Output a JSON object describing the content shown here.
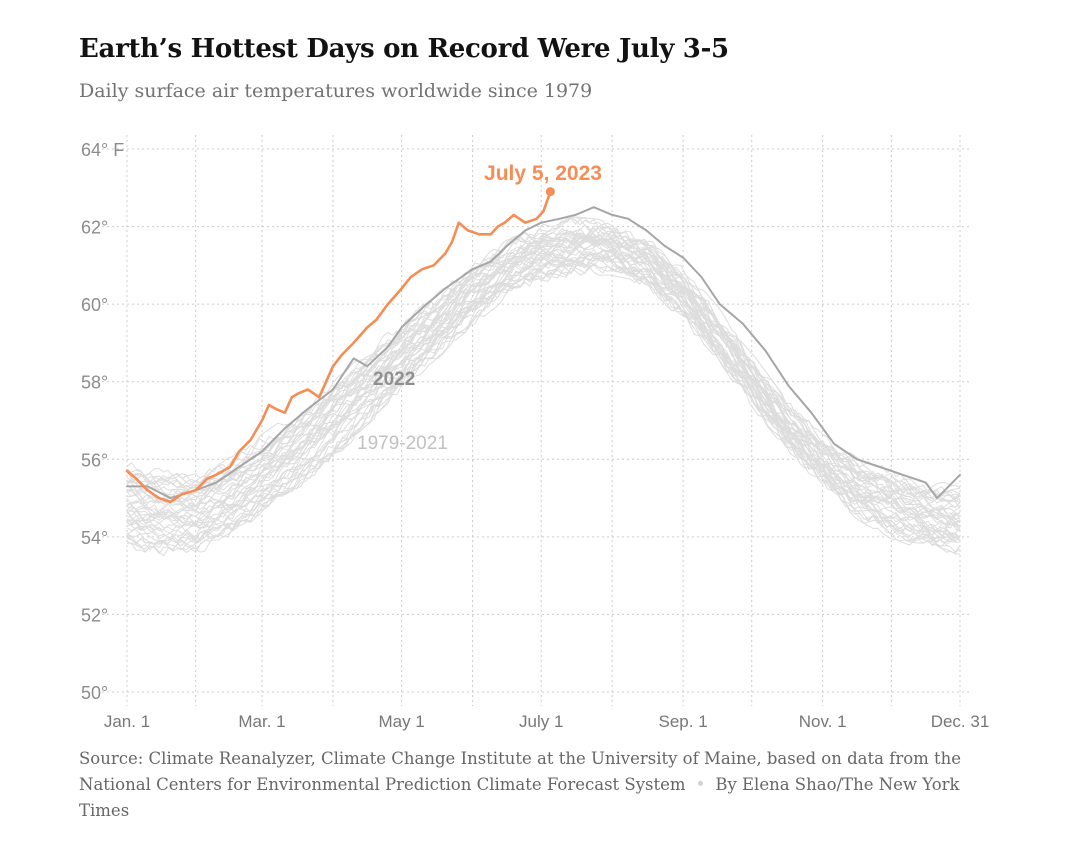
{
  "header": {
    "title": "Earth’s Hottest Days on Record Were July 3-5",
    "subtitle": "Daily surface air temperatures worldwide since 1979"
  },
  "footer": {
    "source": "Source: Climate Reanalyzer, Climate Change Institute at the University of Maine, based on data from the National Centers for Environmental Prediction Climate Forecast System",
    "separator": "•",
    "byline": "By Elena Shao/The New York Times"
  },
  "chart_data": {
    "type": "line",
    "title": "Earth’s Hottest Days on Record Were July 3-5",
    "subtitle": "Daily surface air temperatures worldwide since 1979",
    "xlabel": "",
    "ylabel": "",
    "x_unit": "day of year",
    "xlim": [
      1,
      365
    ],
    "ylim": [
      50,
      64
    ],
    "grid": true,
    "y_ticks": [
      {
        "value": 64,
        "label": "64° F"
      },
      {
        "value": 62,
        "label": "62°"
      },
      {
        "value": 60,
        "label": "60°"
      },
      {
        "value": 58,
        "label": "58°"
      },
      {
        "value": 56,
        "label": "56°"
      },
      {
        "value": 54,
        "label": "54°"
      },
      {
        "value": 52,
        "label": "52°"
      },
      {
        "value": 50,
        "label": "50°"
      }
    ],
    "x_ticks": [
      {
        "value": 1,
        "label": "Jan. 1"
      },
      {
        "value": 60,
        "label": "Mar. 1"
      },
      {
        "value": 121,
        "label": "May 1"
      },
      {
        "value": 182,
        "label": "July 1"
      },
      {
        "value": 244,
        "label": "Sep. 1"
      },
      {
        "value": 305,
        "label": "Nov. 1"
      },
      {
        "value": 365,
        "label": "Dec. 31"
      }
    ],
    "colors": {
      "2023": "#f58d55",
      "2022": "#a6a6a6",
      "historical": "#dddddd",
      "grid": "#cccccc",
      "axis_text": "#8c8c8c"
    },
    "series": [
      {
        "name": "1979-2021",
        "style": "band",
        "x": [
          1,
          16,
          31,
          46,
          60,
          75,
          91,
          106,
          121,
          136,
          152,
          167,
          182,
          197,
          213,
          228,
          244,
          259,
          274,
          289,
          305,
          320,
          335,
          350,
          365
        ],
        "low": [
          53.8,
          53.6,
          53.7,
          54.0,
          54.6,
          55.3,
          56.1,
          57.0,
          57.9,
          58.7,
          59.6,
          60.3,
          60.7,
          60.9,
          60.9,
          60.6,
          59.7,
          58.7,
          57.5,
          56.4,
          55.4,
          54.6,
          54.1,
          53.8,
          53.7
        ],
        "high": [
          55.8,
          55.6,
          55.6,
          55.9,
          56.5,
          57.1,
          57.9,
          58.7,
          59.4,
          60.1,
          60.9,
          61.5,
          61.9,
          62.1,
          62.0,
          61.6,
          60.8,
          59.8,
          58.6,
          57.4,
          56.5,
          55.9,
          55.6,
          55.3,
          55.2
        ]
      },
      {
        "name": "2022",
        "x": [
          1,
          10,
          20,
          31,
          40,
          50,
          60,
          70,
          80,
          91,
          100,
          106,
          115,
          121,
          130,
          140,
          152,
          160,
          167,
          175,
          182,
          190,
          197,
          205,
          213,
          220,
          228,
          236,
          244,
          252,
          260,
          270,
          280,
          290,
          300,
          310,
          320,
          330,
          340,
          350,
          355,
          360,
          365
        ],
        "y": [
          55.3,
          55.3,
          55.0,
          55.2,
          55.4,
          55.8,
          56.2,
          56.8,
          57.3,
          57.8,
          58.6,
          58.4,
          58.9,
          59.4,
          59.9,
          60.4,
          60.9,
          61.1,
          61.5,
          61.9,
          62.1,
          62.2,
          62.3,
          62.5,
          62.3,
          62.2,
          61.9,
          61.5,
          61.2,
          60.7,
          60.0,
          59.5,
          58.8,
          57.9,
          57.2,
          56.4,
          56.0,
          55.8,
          55.6,
          55.4,
          55.0,
          55.3,
          55.6
        ]
      },
      {
        "name": "2023",
        "x": [
          1,
          5,
          10,
          15,
          20,
          25,
          31,
          36,
          40,
          46,
          50,
          55,
          60,
          63,
          66,
          70,
          73,
          76,
          80,
          85,
          91,
          95,
          100,
          106,
          110,
          115,
          121,
          125,
          130,
          135,
          140,
          143,
          146,
          150,
          155,
          160,
          163,
          166,
          170,
          175,
          180,
          183,
          186
        ],
        "y": [
          55.7,
          55.5,
          55.2,
          55.0,
          54.9,
          55.1,
          55.2,
          55.5,
          55.6,
          55.8,
          56.2,
          56.5,
          57.0,
          57.4,
          57.3,
          57.2,
          57.6,
          57.7,
          57.8,
          57.6,
          58.4,
          58.7,
          59.0,
          59.4,
          59.6,
          60.0,
          60.4,
          60.7,
          60.9,
          61.0,
          61.3,
          61.6,
          62.1,
          61.9,
          61.8,
          61.8,
          62.0,
          62.1,
          62.3,
          62.1,
          62.2,
          62.4,
          62.9
        ]
      }
    ],
    "annotations": [
      {
        "text": "July 5, 2023",
        "series": "2023",
        "x": 186,
        "y": 62.9
      },
      {
        "text": "2022",
        "series": "2022"
      },
      {
        "text": "1979-2021",
        "series": "1979-2021"
      }
    ]
  }
}
